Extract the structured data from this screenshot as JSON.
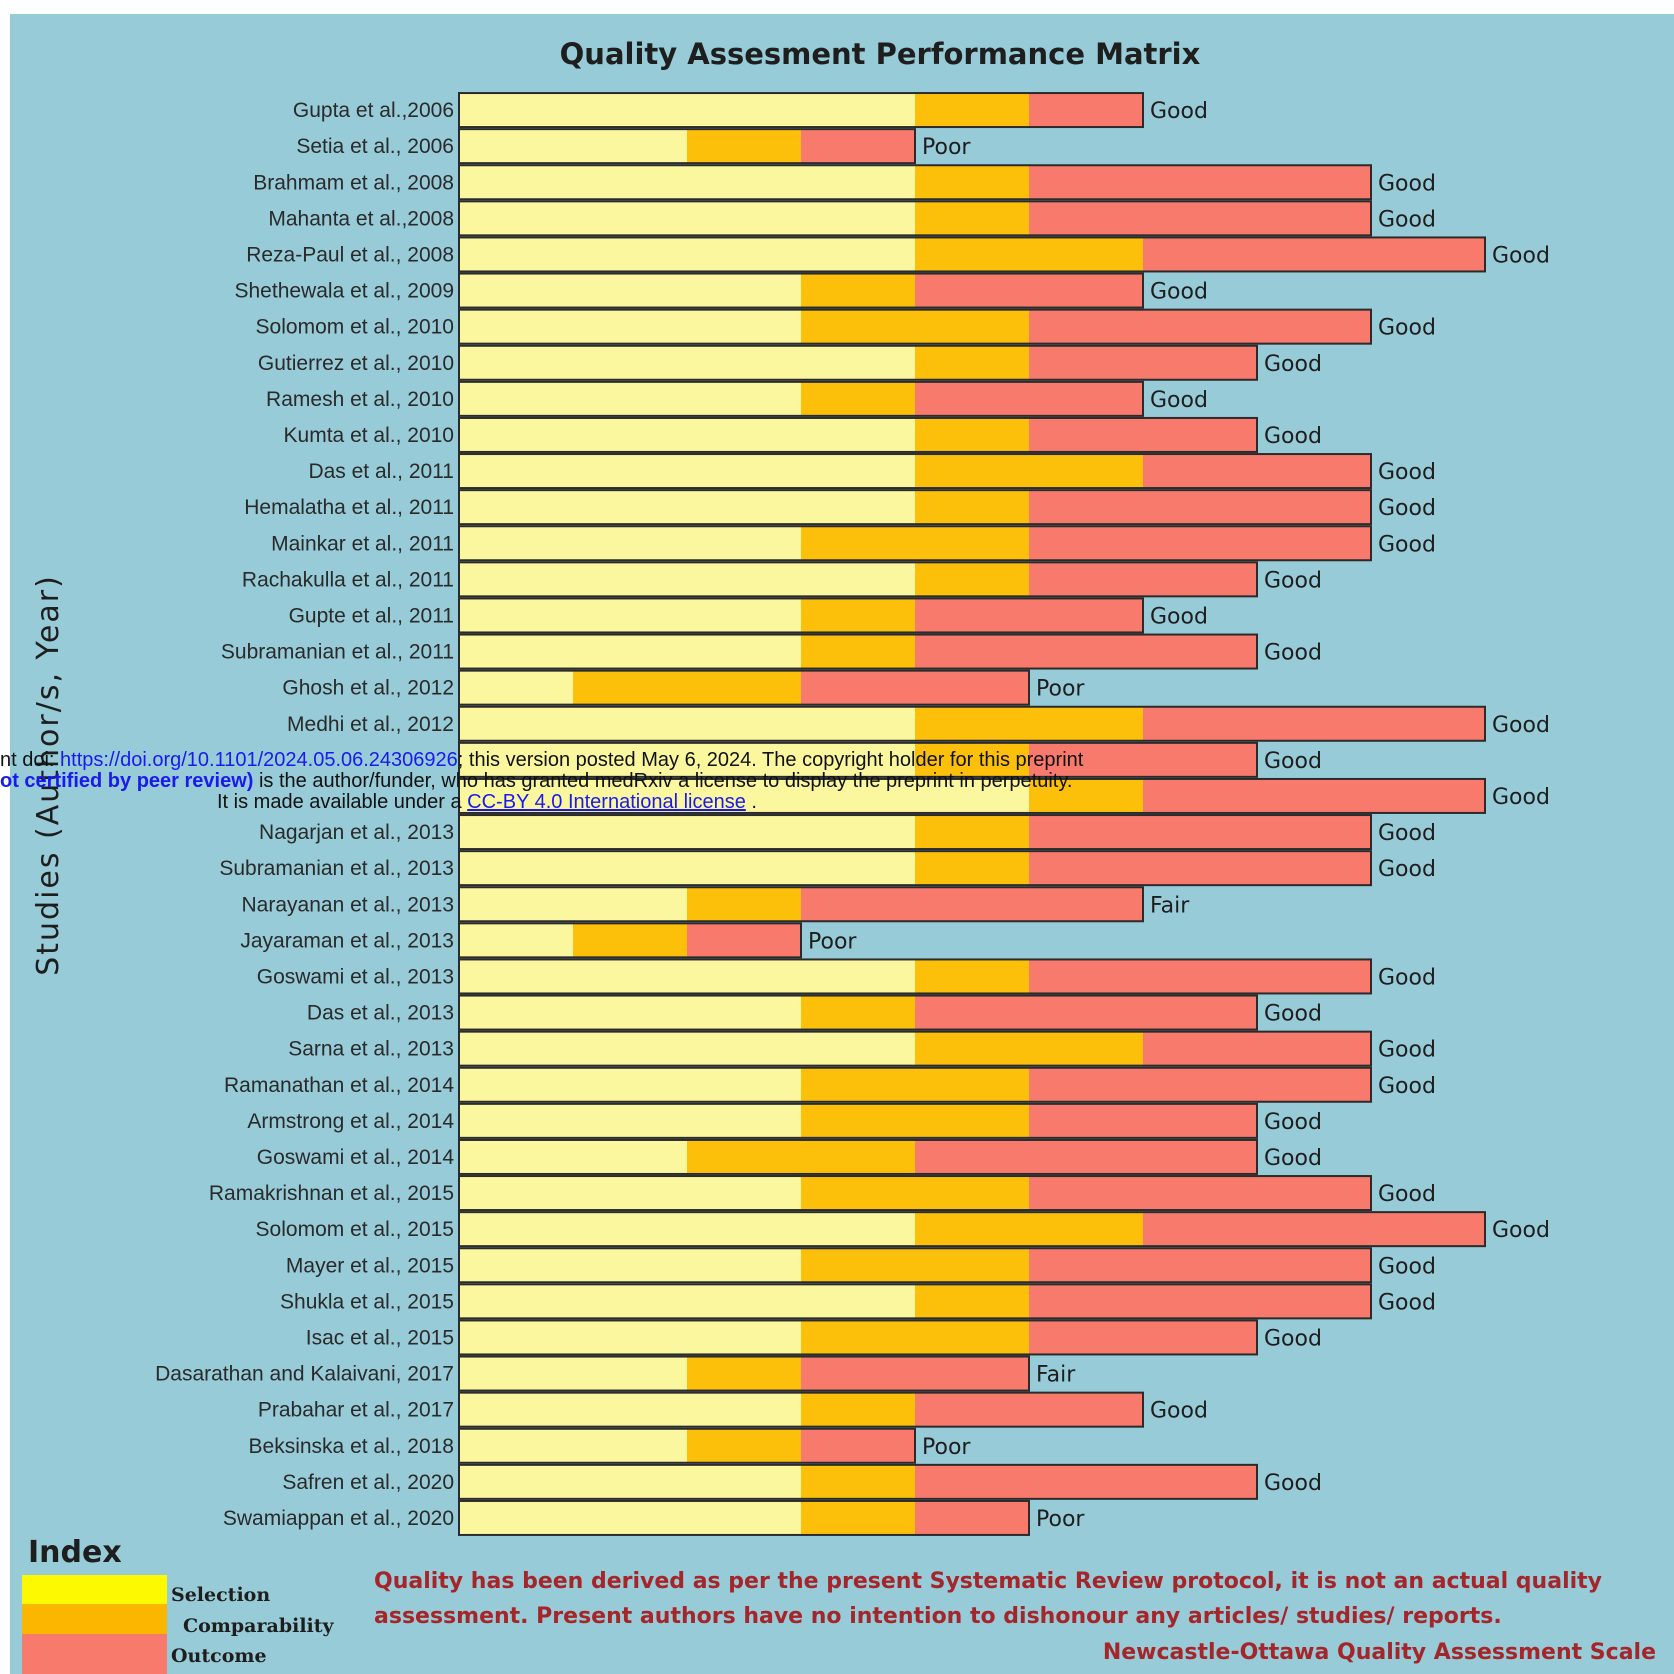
{
  "chart_data": {
    "type": "bar",
    "stacked": true,
    "orientation": "horizontal",
    "title": "Quality Assesment Performance Matrix",
    "ylabel": "Studies (Author/s, Year)",
    "series_names": [
      "Selection",
      "Comparability",
      "Outcome"
    ],
    "colors": {
      "Selection": "#fbf79e",
      "Comparability": "#fcbf0a",
      "Outcome": "#f87a6c"
    },
    "legend_title": "Index",
    "legend_colors": {
      "Selection": "#fcf900",
      "Comparability": "#fbb600",
      "Outcome": "#f87a6c"
    },
    "rows": [
      {
        "study": "Gupta et al.,2006",
        "selection": 4,
        "comparability": 1,
        "outcome": 1,
        "rating": "Good"
      },
      {
        "study": "Setia et al., 2006",
        "selection": 2,
        "comparability": 1,
        "outcome": 1,
        "rating": "Poor"
      },
      {
        "study": "Brahmam  et al., 2008",
        "selection": 4,
        "comparability": 1,
        "outcome": 3,
        "rating": "Good"
      },
      {
        "study": "Mahanta et al.,2008",
        "selection": 4,
        "comparability": 1,
        "outcome": 3,
        "rating": "Good"
      },
      {
        "study": "Reza-Paul et al., 2008",
        "selection": 4,
        "comparability": 2,
        "outcome": 3,
        "rating": "Good"
      },
      {
        "study": "Shethewala et al., 2009",
        "selection": 3,
        "comparability": 1,
        "outcome": 2,
        "rating": "Good"
      },
      {
        "study": "Solomom et al., 2010",
        "selection": 3,
        "comparability": 2,
        "outcome": 3,
        "rating": "Good"
      },
      {
        "study": "Gutierrez  et al.,  2010",
        "selection": 4,
        "comparability": 1,
        "outcome": 2,
        "rating": "Good"
      },
      {
        "study": "Ramesh et al., 2010",
        "selection": 3,
        "comparability": 1,
        "outcome": 2,
        "rating": "Good"
      },
      {
        "study": "Kumta et al., 2010",
        "selection": 4,
        "comparability": 1,
        "outcome": 2,
        "rating": "Good"
      },
      {
        "study": "Das et al., 2011",
        "selection": 4,
        "comparability": 2,
        "outcome": 2,
        "rating": "Good"
      },
      {
        "study": "Hemalatha et al., 2011",
        "selection": 4,
        "comparability": 1,
        "outcome": 3,
        "rating": "Good"
      },
      {
        "study": "Mainkar et al., 2011",
        "selection": 3,
        "comparability": 2,
        "outcome": 3,
        "rating": "Good"
      },
      {
        "study": "Rachakulla et al., 2011",
        "selection": 4,
        "comparability": 1,
        "outcome": 2,
        "rating": "Good"
      },
      {
        "study": "Gupte et al., 2011",
        "selection": 3,
        "comparability": 1,
        "outcome": 2,
        "rating": "Good"
      },
      {
        "study": "Subramanian et al., 2011",
        "selection": 3,
        "comparability": 1,
        "outcome": 3,
        "rating": "Good"
      },
      {
        "study": "Ghosh et al., 2012",
        "selection": 1,
        "comparability": 2,
        "outcome": 2,
        "rating": "Poor"
      },
      {
        "study": "Medhi et al., 2012",
        "selection": 4,
        "comparability": 2,
        "outcome": 3,
        "rating": "Good"
      },
      {
        "study": "",
        "selection": 4,
        "comparability": 1,
        "outcome": 2,
        "rating": "Good"
      },
      {
        "study": "",
        "selection": 5,
        "comparability": 1,
        "outcome": 3,
        "rating": "Good"
      },
      {
        "study": "Nagarjan et al., 2013",
        "selection": 4,
        "comparability": 1,
        "outcome": 3,
        "rating": "Good"
      },
      {
        "study": "Subramanian et al., 2013",
        "selection": 4,
        "comparability": 1,
        "outcome": 3,
        "rating": "Good"
      },
      {
        "study": "Narayanan et al., 2013",
        "selection": 2,
        "comparability": 1,
        "outcome": 3,
        "rating": "Fair"
      },
      {
        "study": "Jayaraman et al., 2013",
        "selection": 1,
        "comparability": 1,
        "outcome": 1,
        "rating": "Poor"
      },
      {
        "study": "Goswami et al., 2013",
        "selection": 4,
        "comparability": 1,
        "outcome": 3,
        "rating": "Good"
      },
      {
        "study": "Das et al., 2013",
        "selection": 3,
        "comparability": 1,
        "outcome": 3,
        "rating": "Good"
      },
      {
        "study": "Sarna et al., 2013",
        "selection": 4,
        "comparability": 2,
        "outcome": 2,
        "rating": "Good"
      },
      {
        "study": "Ramanathan et al., 2014",
        "selection": 3,
        "comparability": 2,
        "outcome": 3,
        "rating": "Good"
      },
      {
        "study": "Armstrong et al., 2014",
        "selection": 3,
        "comparability": 2,
        "outcome": 2,
        "rating": "Good"
      },
      {
        "study": "Goswami et al., 2014",
        "selection": 2,
        "comparability": 2,
        "outcome": 3,
        "rating": "Good"
      },
      {
        "study": "Ramakrishnan  et al., 2015",
        "selection": 3,
        "comparability": 2,
        "outcome": 3,
        "rating": "Good"
      },
      {
        "study": "Solomom et al., 2015",
        "selection": 4,
        "comparability": 2,
        "outcome": 3,
        "rating": "Good"
      },
      {
        "study": "Mayer et al., 2015",
        "selection": 3,
        "comparability": 2,
        "outcome": 3,
        "rating": "Good"
      },
      {
        "study": "Shukla et al., 2015",
        "selection": 4,
        "comparability": 1,
        "outcome": 3,
        "rating": "Good"
      },
      {
        "study": "Isac et al., 2015",
        "selection": 3,
        "comparability": 2,
        "outcome": 2,
        "rating": "Good"
      },
      {
        "study": "Dasarathan and Kalaivani, 2017",
        "selection": 2,
        "comparability": 1,
        "outcome": 2,
        "rating": "Fair"
      },
      {
        "study": "Prabahar et al., 2017",
        "selection": 3,
        "comparability": 1,
        "outcome": 2,
        "rating": "Good"
      },
      {
        "study": "Beksinska et al., 2018",
        "selection": 2,
        "comparability": 1,
        "outcome": 1,
        "rating": "Poor"
      },
      {
        "study": "Safren et al., 2020",
        "selection": 3,
        "comparability": 1,
        "outcome": 3,
        "rating": "Good"
      },
      {
        "study": "Swamiappan et al., 2020",
        "selection": 3,
        "comparability": 1,
        "outcome": 1,
        "rating": "Poor"
      }
    ],
    "note": [
      "Quality has been derived as per the present Systematic Review protocol, it is not an actual quality",
      "assessment. Present authors have no intention to dishonour any articles/ studies/ reports."
    ],
    "scale_name": "Newcastle-Ottawa Quality Assessment Scale"
  },
  "overlay": {
    "line1_prefix": "nt doi: ",
    "doi": "https://doi.org/10.1101/2024.05.06.24306926",
    "line1_suffix": "; this version posted May 6, 2024. The copyright holder for this preprint",
    "line2_bold": "ot certified by peer review)",
    "line2_rest": " is the author/funder, who has granted medRxiv a license to display the preprint in perpetuity.",
    "line3_prefix": "It is made available under a ",
    "license": "CC-BY 4.0 International license",
    "line3_suffix": " ."
  }
}
